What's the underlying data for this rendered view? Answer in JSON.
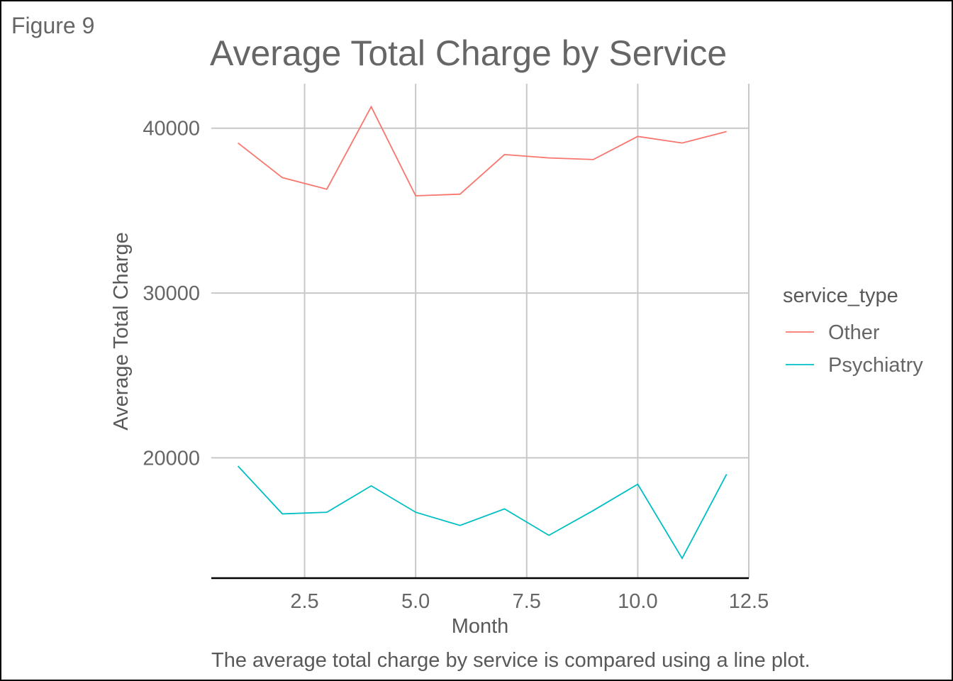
{
  "figure_label": "Figure 9",
  "chart_data": {
    "type": "line",
    "title": "Average Total Charge by Service",
    "caption": "The average total charge by service is compared using a line plot.",
    "xlabel": "Month",
    "ylabel": "Average Total Charge",
    "xlim": [
      0.4,
      12.5
    ],
    "ylim": [
      12700,
      42700
    ],
    "x_ticks": [
      2.5,
      5.0,
      7.5,
      10.0,
      12.5
    ],
    "x_tick_labels": [
      "2.5",
      "5.0",
      "7.5",
      "10.0",
      "12.5"
    ],
    "y_ticks": [
      20000,
      30000,
      40000
    ],
    "y_tick_labels": [
      "20000",
      "30000",
      "40000"
    ],
    "grid": true,
    "legend": {
      "title": "service_type",
      "position": "right"
    },
    "x": [
      1,
      2,
      3,
      4,
      5,
      6,
      7,
      8,
      9,
      10,
      11,
      12
    ],
    "series": [
      {
        "name": "Other",
        "color": "#F8766D",
        "values": [
          39100,
          37000,
          36300,
          41300,
          35900,
          36000,
          38400,
          38200,
          38100,
          39500,
          39100,
          39800
        ]
      },
      {
        "name": "Psychiatry",
        "color": "#00BFC4",
        "values": [
          19500,
          16600,
          16700,
          18300,
          16700,
          15900,
          16900,
          15300,
          16800,
          18400,
          13900,
          19000
        ]
      }
    ]
  }
}
